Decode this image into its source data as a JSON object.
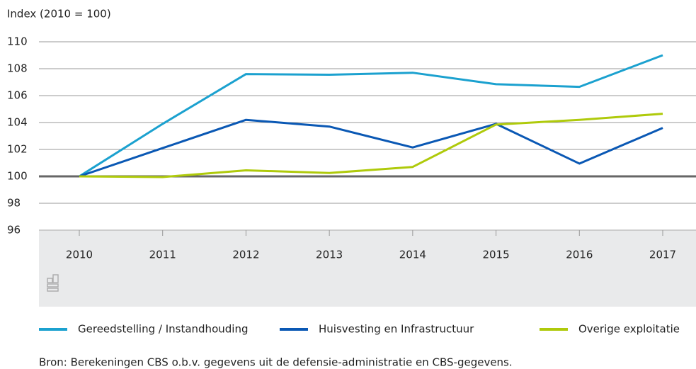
{
  "chart_data": {
    "type": "line",
    "y_label": "Index (2010 = 100)",
    "categories": [
      "2010",
      "2011",
      "2012",
      "2013",
      "2014",
      "2015",
      "2016",
      "2017"
    ],
    "series": [
      {
        "name": "Gereedstelling / Instandhouding",
        "color": "#1ba1cf",
        "values": [
          100,
          103.9,
          107.6,
          107.55,
          107.7,
          106.85,
          106.65,
          109.0
        ]
      },
      {
        "name": "Huisvesting en Infrastructuur",
        "color": "#0a58b4",
        "values": [
          100,
          102.1,
          104.2,
          103.7,
          102.15,
          103.9,
          100.95,
          103.6
        ]
      },
      {
        "name": "Overige exploitatie",
        "color": "#afca0b",
        "values": [
          100,
          99.95,
          100.45,
          100.25,
          100.7,
          103.85,
          104.2,
          104.65
        ]
      }
    ],
    "ylim": [
      96,
      110
    ],
    "yticks": [
      96,
      98,
      100,
      102,
      104,
      106,
      108,
      110
    ],
    "grid": true,
    "reference_line": 100,
    "source": "Bron:  Berekeningen CBS o.b.v. gegevens uit de defensie-administratie en CBS-gegevens."
  }
}
